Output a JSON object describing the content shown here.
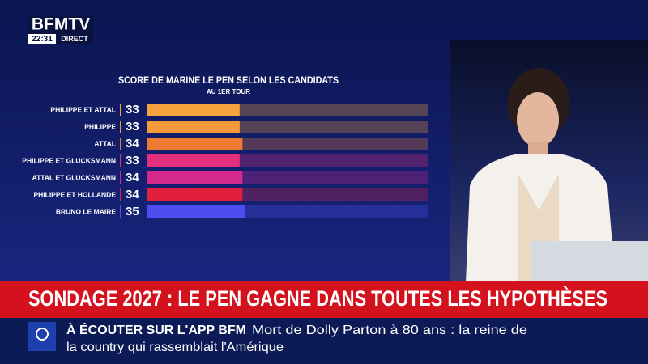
{
  "channel": {
    "logo": "BFMTV",
    "time": "22:31",
    "live": "DIRECT"
  },
  "chart_data": {
    "type": "hbar",
    "title": "SCORE DE MARINE LE PEN SELON LES CANDIDATS",
    "subtitle": "AU 1ER TOUR",
    "categories": [
      "PHILIPPE ET ATTAL",
      "PHILIPPE",
      "ATTAL",
      "PHILIPPE ET GLUCKSMANN",
      "ATTAL ET GLUCKSMANN",
      "PHILIPPE ET HOLLANDE",
      "BRUNO LE MAIRE"
    ],
    "values": [
      33,
      33,
      34,
      33,
      34,
      34,
      35
    ],
    "colors": [
      "#f7a23c",
      "#f59a3a",
      "#f07a30",
      "#e4307c",
      "#d42a8c",
      "#e0203c",
      "#4f4cf2"
    ],
    "xlim": [
      0,
      100
    ]
  },
  "headline": "SONDAGE 2027 : LE PEN GAGNE DANS TOUTES LES HYPOTHÈSES",
  "ticker": {
    "label": "À ÉCOUTER SUR L'APP BFM",
    "line1": "Mort de Dolly Parton à 80 ans : la reine de",
    "line2": "la country qui rassemblait l'Amérique"
  }
}
